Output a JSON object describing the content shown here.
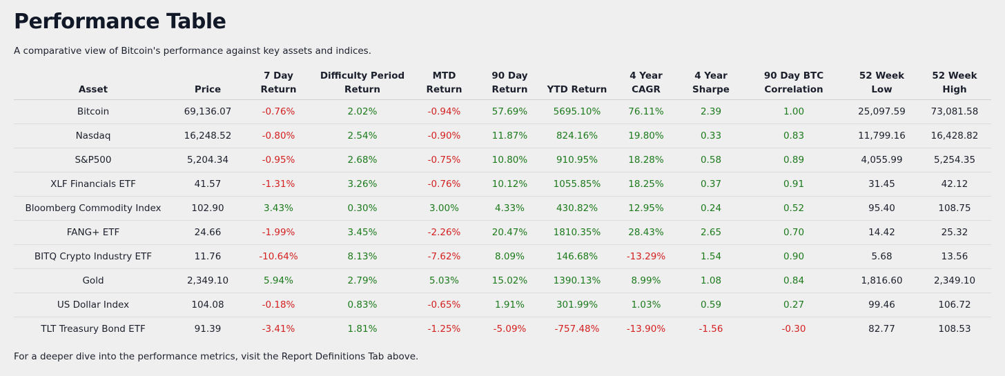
{
  "header": {
    "title": "Performance Table",
    "subtitle": "A comparative view of Bitcoin's performance against key assets and indices."
  },
  "table": {
    "columns": [
      "Asset",
      "Price",
      "7 Day Return",
      "Difficulty Period Return",
      "MTD Return",
      "90 Day Return",
      "YTD Return",
      "4 Year CAGR",
      "4 Year Sharpe",
      "90 Day BTC Correlation",
      "52 Week Low",
      "52 Week High"
    ],
    "rows": [
      [
        "Bitcoin",
        "69,136.07",
        "-0.76%",
        "2.02%",
        "-0.94%",
        "57.69%",
        "5695.10%",
        "76.11%",
        "2.39",
        "1.00",
        "25,097.59",
        "73,081.58"
      ],
      [
        "Nasdaq",
        "16,248.52",
        "-0.80%",
        "2.54%",
        "-0.90%",
        "11.87%",
        "824.16%",
        "19.80%",
        "0.33",
        "0.83",
        "11,799.16",
        "16,428.82"
      ],
      [
        "S&P500",
        "5,204.34",
        "-0.95%",
        "2.68%",
        "-0.75%",
        "10.80%",
        "910.95%",
        "18.28%",
        "0.58",
        "0.89",
        "4,055.99",
        "5,254.35"
      ],
      [
        "XLF Financials ETF",
        "41.57",
        "-1.31%",
        "3.26%",
        "-0.76%",
        "10.12%",
        "1055.85%",
        "18.25%",
        "0.37",
        "0.91",
        "31.45",
        "42.12"
      ],
      [
        "Bloomberg Commodity Index",
        "102.90",
        "3.43%",
        "0.30%",
        "3.00%",
        "4.33%",
        "430.82%",
        "12.95%",
        "0.24",
        "0.52",
        "95.40",
        "108.75"
      ],
      [
        "FANG+ ETF",
        "24.66",
        "-1.99%",
        "3.45%",
        "-2.26%",
        "20.47%",
        "1810.35%",
        "28.43%",
        "2.65",
        "0.70",
        "14.42",
        "25.32"
      ],
      [
        "BITQ Crypto Industry ETF",
        "11.76",
        "-10.64%",
        "8.13%",
        "-7.62%",
        "8.09%",
        "146.68%",
        "-13.29%",
        "1.54",
        "0.90",
        "5.68",
        "13.56"
      ],
      [
        "Gold",
        "2,349.10",
        "5.94%",
        "2.79%",
        "5.03%",
        "15.02%",
        "1390.13%",
        "8.99%",
        "1.08",
        "0.84",
        "1,816.60",
        "2,349.10"
      ],
      [
        "US Dollar Index",
        "104.08",
        "-0.18%",
        "0.83%",
        "-0.65%",
        "1.91%",
        "301.99%",
        "1.03%",
        "0.59",
        "0.27",
        "99.46",
        "106.72"
      ],
      [
        "TLT Treasury Bond ETF",
        "91.39",
        "-3.41%",
        "1.81%",
        "-1.25%",
        "-5.09%",
        "-757.48%",
        "-13.90%",
        "-1.56",
        "-0.30",
        "82.77",
        "108.53"
      ]
    ]
  },
  "footer": "For a deeper dive into the performance metrics, visit the Report Definitions Tab above."
}
